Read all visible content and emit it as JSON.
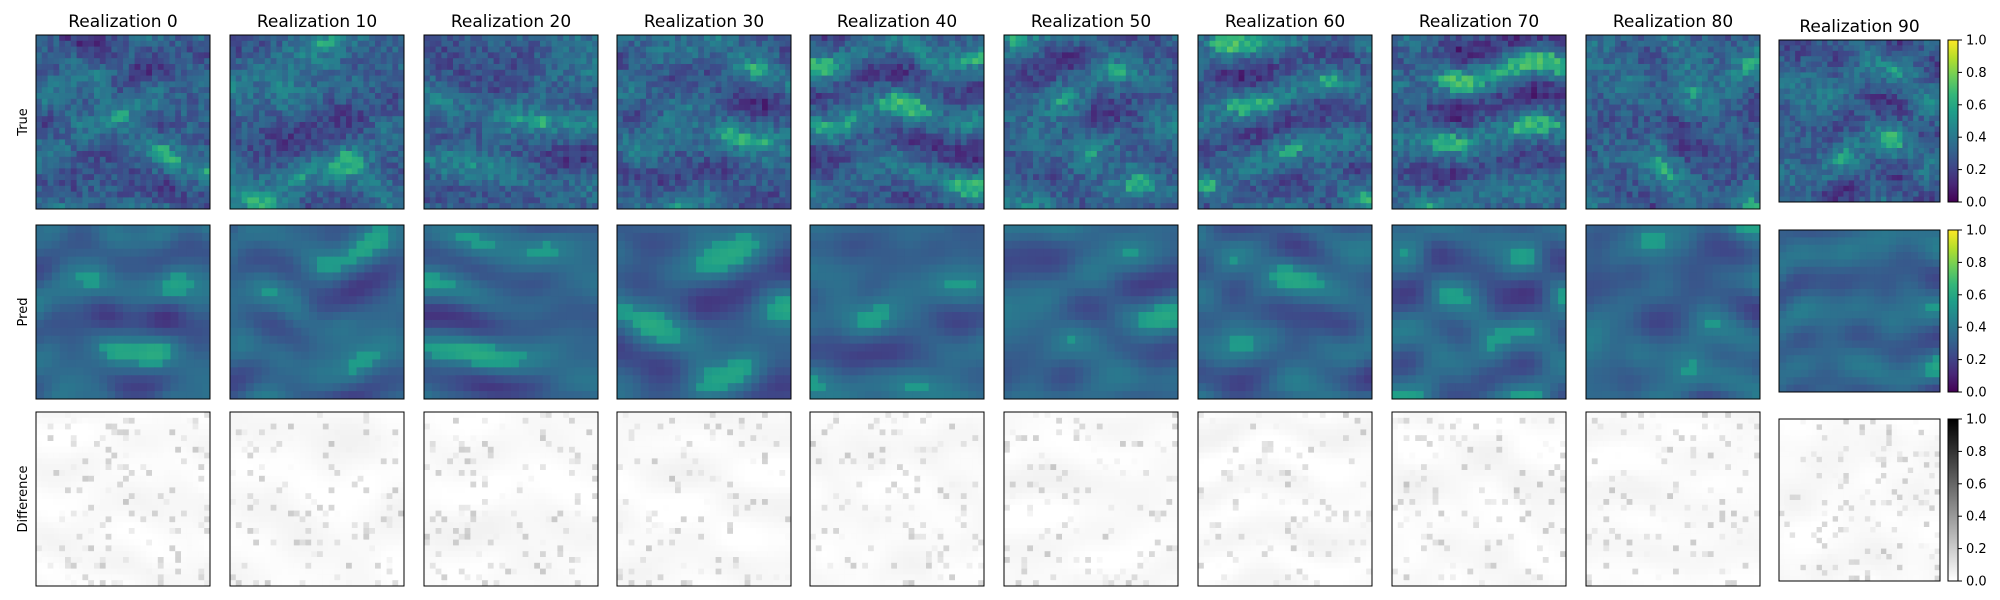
{
  "chart_data": {
    "type": "heatmap",
    "columns": [
      "Realization 0",
      "Realization 10",
      "Realization 20",
      "Realization 30",
      "Realization 40",
      "Realization 50",
      "Realization 60",
      "Realization 70",
      "Realization 80",
      "Realization 90"
    ],
    "rows": [
      {
        "label": "True",
        "colormap": "viridis",
        "range": [
          0.0,
          1.0
        ]
      },
      {
        "label": "Pred",
        "colormap": "viridis",
        "range": [
          0.0,
          1.0
        ]
      },
      {
        "label": "Difference",
        "colormap": "greys",
        "range": [
          0.0,
          1.0
        ]
      }
    ],
    "colorbar_ticks": [
      "0.0",
      "0.2",
      "0.4",
      "0.6",
      "0.8",
      "1.0"
    ],
    "colors": {
      "viridis": [
        "#440154",
        "#482878",
        "#3e4989",
        "#31688e",
        "#26828e",
        "#1f9e89",
        "#35b779",
        "#6ece58",
        "#b5de2b",
        "#fde725"
      ],
      "greys": [
        "#ffffff",
        "#000000"
      ]
    }
  }
}
